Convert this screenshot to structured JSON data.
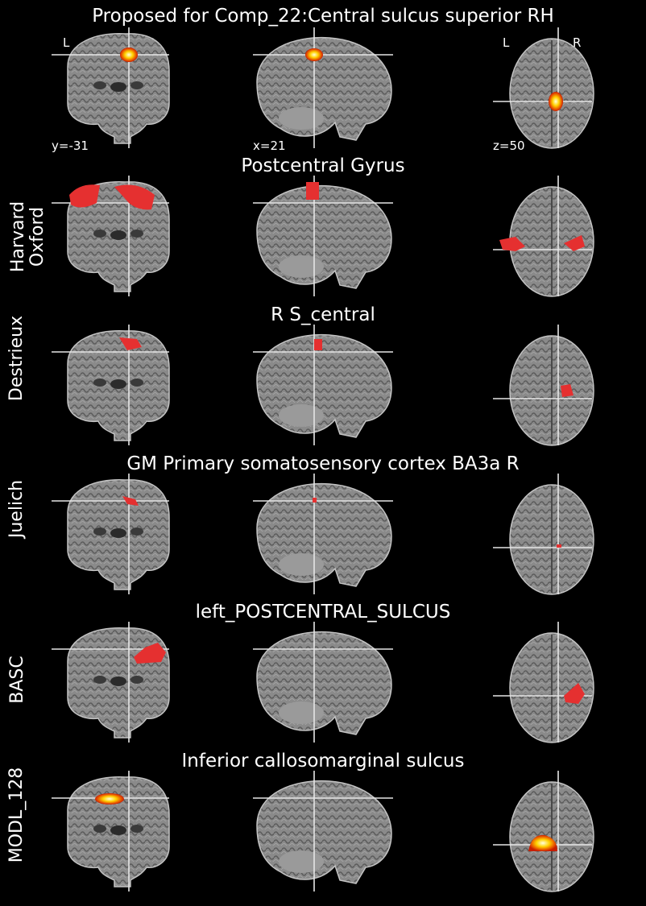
{
  "main_title": "Proposed for Comp_22:Central sulcus superior RH",
  "orientation": {
    "left": "L",
    "right": "R"
  },
  "coords": {
    "y": "y=-31",
    "x": "x=21",
    "z": "z=50"
  },
  "colors": {
    "background": "#000000",
    "blob_red": "#e53030",
    "hot_outer": "#c81e00",
    "hot_mid": "#ffa200",
    "hot_core": "#ffffe0",
    "crosshair": "#ffffff"
  },
  "rows": [
    {
      "label": "",
      "title": "Proposed for Comp_22:Central sulcus superior RH",
      "style": "hot"
    },
    {
      "label": "Harvard Oxford",
      "title": "Postcentral Gyrus",
      "style": "red"
    },
    {
      "label": "Destrieux",
      "title": "R S_central",
      "style": "red"
    },
    {
      "label": "Juelich",
      "title": "GM Primary somatosensory cortex BA3a R",
      "style": "red"
    },
    {
      "label": "BASC",
      "title": "left_POSTCENTRAL_SULCUS",
      "style": "red"
    },
    {
      "label": "MODL_128",
      "title": "Inferior callosomarginal sulcus",
      "style": "hot"
    }
  ]
}
